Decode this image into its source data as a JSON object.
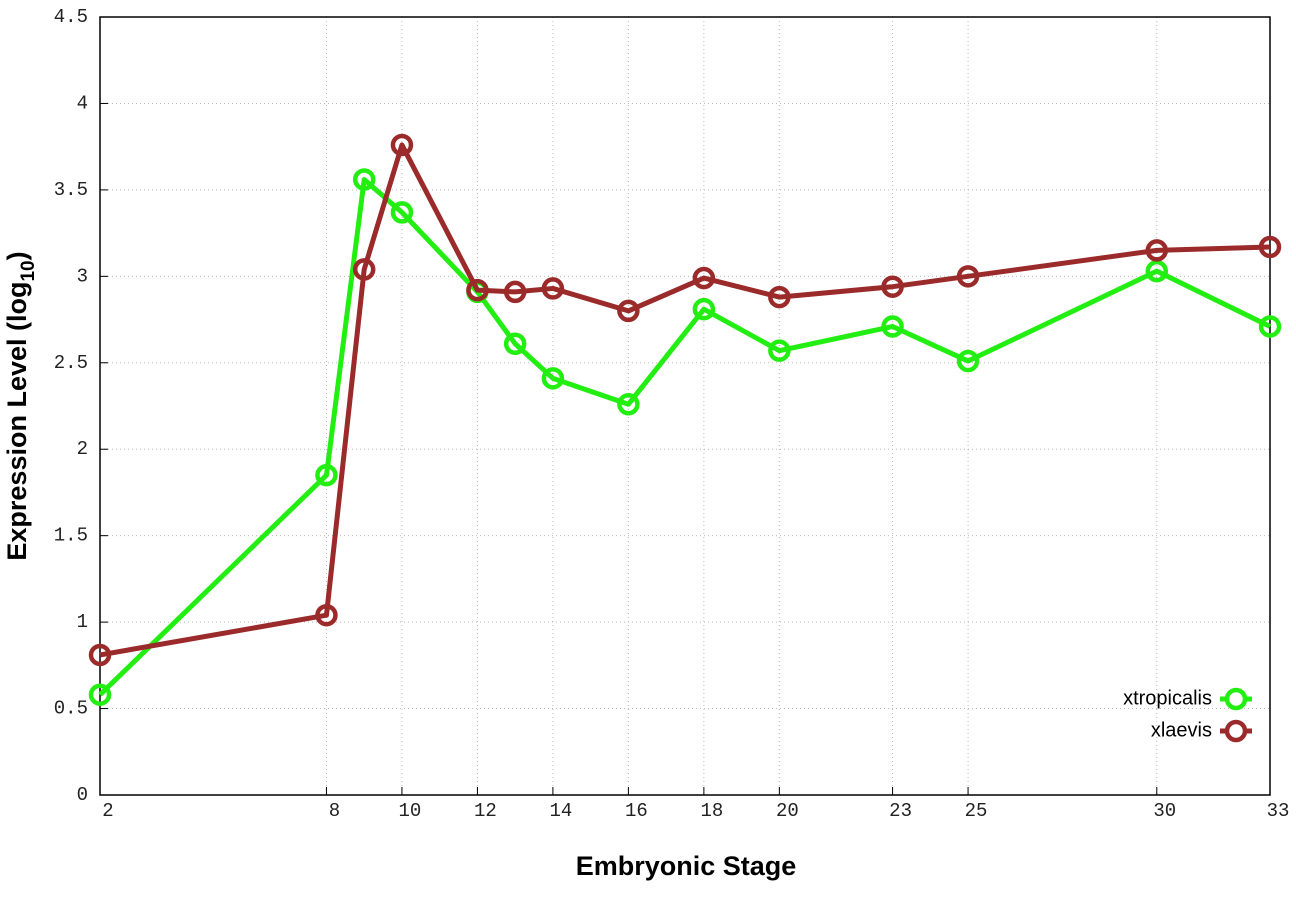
{
  "chart_data": {
    "type": "line",
    "xlabel": "Embryonic Stage",
    "ylabel": [
      "Expression Level (log",
      "10",
      ")"
    ],
    "x": [
      2,
      8,
      9,
      10,
      12,
      13,
      14,
      16,
      18,
      20,
      23,
      25,
      30,
      33
    ],
    "series": [
      {
        "name": "xtropicalis",
        "color": "#22ee11",
        "values": [
          0.58,
          1.85,
          3.56,
          3.37,
          2.91,
          2.61,
          2.41,
          2.26,
          2.81,
          2.57,
          2.71,
          2.51,
          3.03,
          2.71
        ]
      },
      {
        "name": "xlaevis",
        "color": "#9b2a2a",
        "values": [
          0.81,
          1.04,
          3.04,
          3.76,
          2.92,
          2.91,
          2.93,
          2.8,
          2.99,
          2.88,
          2.94,
          3.0,
          3.15,
          3.17
        ]
      }
    ],
    "xlim": [
      2,
      33
    ],
    "xticks": [
      2,
      8,
      10,
      12,
      14,
      16,
      18,
      20,
      23,
      25,
      30,
      33
    ],
    "ylim": [
      0,
      4.5
    ],
    "yticks": [
      0,
      0.5,
      1,
      1.5,
      2,
      2.5,
      3,
      3.5,
      4,
      4.5
    ],
    "grid": true,
    "legend": "lower right"
  }
}
